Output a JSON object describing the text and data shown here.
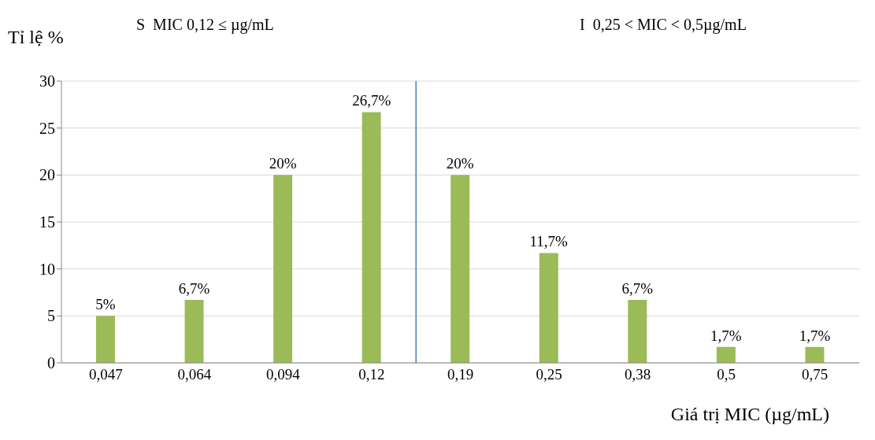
{
  "chart_data": {
    "type": "bar",
    "ylabel": "Tỉ lệ %",
    "xlabel": "Giá trị MIC (µg/mL)",
    "annotations": [
      "S  MIC 0,12 ≤ µg/mL",
      "I  0,25 < MIC < 0,5µg/mL"
    ],
    "categories": [
      "0,047",
      "0,064",
      "0,094",
      "0,12",
      "0,19",
      "0,25",
      "0,38",
      "0,5",
      "0,75"
    ],
    "values": [
      5,
      6.7,
      20,
      26.7,
      20,
      11.7,
      6.7,
      1.7,
      1.7
    ],
    "value_labels": [
      "5%",
      "6,7%",
      "20%",
      "26,7%",
      "20%",
      "11,7%",
      "6,7%",
      "1,7%",
      "1,7%"
    ],
    "color": "#9bbb59",
    "ylim": [
      0,
      30
    ],
    "yticks": [
      0,
      5,
      10,
      15,
      20,
      25,
      30
    ],
    "grid": "y",
    "ref_lines": [
      {
        "axis": "x",
        "value": "0,12",
        "color": "#4a7ebb"
      }
    ]
  }
}
